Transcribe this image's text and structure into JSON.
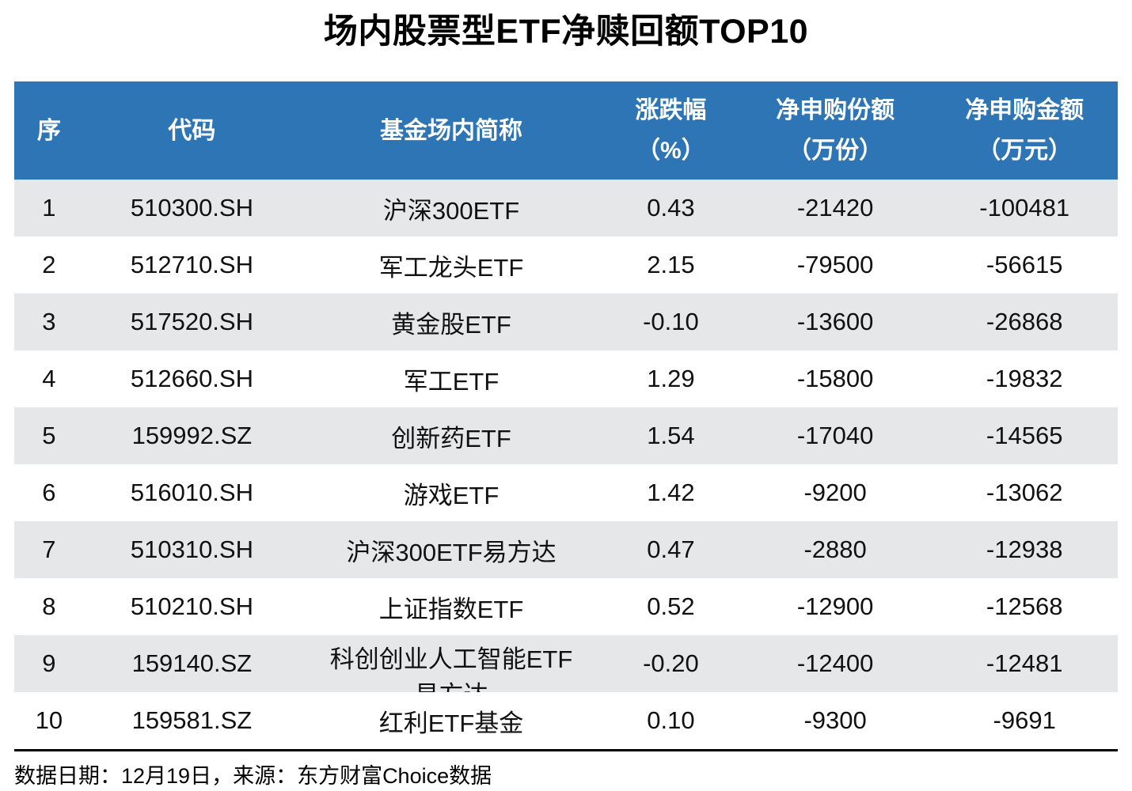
{
  "title": "场内股票型ETF净赎回额TOP10",
  "chart_data": {
    "type": "table",
    "title": "场内股票型ETF净赎回额TOP10",
    "columns": [
      "序",
      "代码",
      "基金场内简称",
      "涨跌幅\n（%）",
      "净申购份额\n（万份）",
      "净申购金额\n（万元）"
    ],
    "column_keys": [
      "rank",
      "code",
      "name",
      "change-pct",
      "net-subscription-shares",
      "net-subscription-amount"
    ],
    "rows": [
      [
        "1",
        "510300.SH",
        "沪深300ETF",
        "0.43",
        "-21420",
        "-100481"
      ],
      [
        "2",
        "512710.SH",
        "军工龙头ETF",
        "2.15",
        "-79500",
        "-56615"
      ],
      [
        "3",
        "517520.SH",
        "黄金股ETF",
        "-0.10",
        "-13600",
        "-26868"
      ],
      [
        "4",
        "512660.SH",
        "军工ETF",
        "1.29",
        "-15800",
        "-19832"
      ],
      [
        "5",
        "159992.SZ",
        "创新药ETF",
        "1.54",
        "-17040",
        "-14565"
      ],
      [
        "6",
        "516010.SH",
        "游戏ETF",
        "1.42",
        "-9200",
        "-13062"
      ],
      [
        "7",
        "510310.SH",
        "沪深300ETF易方达",
        "0.47",
        "-2880",
        "-12938"
      ],
      [
        "8",
        "510210.SH",
        "上证指数ETF",
        "0.52",
        "-12900",
        "-12568"
      ],
      [
        "9",
        "159140.SZ",
        "科创创业人工智能ETF\n易方达",
        "-0.20",
        "-12400",
        "-12481"
      ],
      [
        "10",
        "159581.SZ",
        "红利ETF基金",
        "0.10",
        "-9300",
        "-9691"
      ]
    ],
    "layout": {
      "striped": true,
      "stripe_on_odd_rows": true,
      "column_widths_pct": [
        6.3,
        19.6,
        27.4,
        12.4,
        17.4,
        16.9
      ]
    }
  },
  "footer": {
    "note": "数据日期：12月19日，来源：东方财富Choice数据"
  },
  "colors": {
    "header_bg": "#2E75B6",
    "header_text": "#FFFFFF",
    "stripe_bg": "#E5E7E9",
    "row_bg": "#FFFFFF",
    "body_text": "#111111",
    "divider": "#000000"
  }
}
